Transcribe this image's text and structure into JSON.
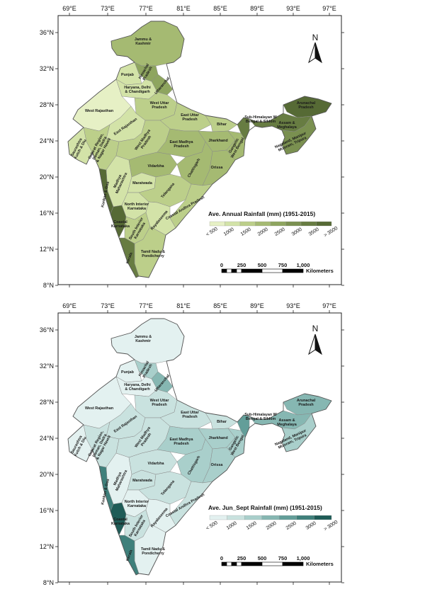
{
  "longitude_labels": [
    "69°E",
    "73°E",
    "77°E",
    "81°E",
    "85°E",
    "89°E",
    "93°E",
    "97°E"
  ],
  "latitude_labels": [
    "36°N",
    "32°N",
    "28°N",
    "24°N",
    "20°N",
    "16°N",
    "12°N",
    "8°N"
  ],
  "north_label": "N",
  "regions": [
    "Jammu & Kashmir",
    "Himachal Pradesh",
    "Punjab",
    "Uttaranchal",
    "Haryana, Delhi & Chandigarh",
    "West Rajasthan",
    "West Uttar Pradesh",
    "East Rajasthan",
    "East Uttar Pradesh",
    "Bihar",
    "Sub-Himalayan W Bengal & Sikkim",
    "Arunachal Pradesh",
    "Assam & Meghalaya",
    "Nagaland, Manipur, Mizoram, Tripura",
    "Gujarat Region, Daman, Dadra & Nagar Haveli",
    "Saurashtra, Kutch & Diu",
    "West Madhya Pradesh",
    "East Madhya Pradesh",
    "Jharkhand",
    "Gangetic West Bengal",
    "Madhya Maharashtra",
    "Vidarbha",
    "Chattisgarh",
    "Orissa",
    "Konkan & Goa",
    "Maratwada",
    "North Interior Karnataka",
    "Telangana",
    "Coastal Andhra Pradesh",
    "Coastal Karnataka",
    "South Interior Karnataka",
    "Rayalaseema",
    "Tamil Nadu & Pondicherry",
    "Kerala"
  ],
  "maps": [
    {
      "legend_title": "Ave. Annual Rainfall (mm) (1951-2015)",
      "legend_labels": [
        "< 500",
        "1000",
        "1500",
        "2000",
        "2500",
        "3000",
        "3500",
        "> 3500"
      ],
      "legend_colors": [
        "#e6f0c5",
        "#d3e3a8",
        "#bccf8a",
        "#a5ba72",
        "#8ea55f",
        "#7a9050",
        "#677c42",
        "#566a35"
      ],
      "region_levels": {
        "Jammu & Kashmir": 3,
        "Himachal Pradesh": 4,
        "Punjab": 1,
        "Uttaranchal": 4,
        "Haryana, Delhi & Chandigarh": 1,
        "West Rajasthan": 0,
        "West Uttar Pradesh": 2,
        "East Rajasthan": 1,
        "East Uttar Pradesh": 2,
        "Bihar": 2,
        "Sub-Himalayan W Bengal & Sikkim": 6,
        "Arunachal Pradesh": 7,
        "Assam & Meghalaya": 6,
        "Nagaland, Manipur, Mizoram, Tripura": 5,
        "Gujarat Region, Daman, Dadra & Nagar Haveli": 2,
        "Saurashtra, Kutch & Diu": 1,
        "West Madhya Pradesh": 2,
        "East Madhya Pradesh": 3,
        "Jharkhand": 3,
        "Gangetic West Bengal": 3,
        "Madhya Maharashtra": 1,
        "Vidarbha": 3,
        "Chattisgarh": 3,
        "Orissa": 3,
        "Konkan & Goa": 7,
        "Maratwada": 1,
        "North Interior Karnataka": 1,
        "Telangana": 2,
        "Coastal Andhra Pradesh": 2,
        "Coastal Karnataka": 7,
        "South Interior Karnataka": 2,
        "Rayalaseema": 1,
        "Tamil Nadu & Pondicherry": 2,
        "Kerala": 6
      }
    },
    {
      "legend_title": "Ave. Jun_Sept Rainfall (mm) (1951-2015)",
      "legend_labels": [
        "< 500",
        "1000",
        "1500",
        "2000",
        "2500",
        "3000",
        "> 3000"
      ],
      "legend_colors": [
        "#e3f1f0",
        "#c9e2df",
        "#a9cfcb",
        "#86b7b2",
        "#639e99",
        "#3f807b",
        "#1f5c57"
      ],
      "region_levels": {
        "Jammu & Kashmir": 0,
        "Himachal Pradesh": 2,
        "Punjab": 0,
        "Uttaranchal": 3,
        "Haryana, Delhi & Chandigarh": 0,
        "West Rajasthan": 0,
        "West Uttar Pradesh": 1,
        "East Rajasthan": 1,
        "East Uttar Pradesh": 1,
        "Bihar": 1,
        "Sub-Himalayan W Bengal & Sikkim": 4,
        "Arunachal Pradesh": 3,
        "Assam & Meghalaya": 3,
        "Nagaland, Manipur, Mizoram, Tripura": 2,
        "Gujarat Region, Daman, Dadra & Nagar Haveli": 1,
        "Saurashtra, Kutch & Diu": 0,
        "West Madhya Pradesh": 1,
        "East Madhya Pradesh": 2,
        "Jharkhand": 2,
        "Gangetic West Bengal": 2,
        "Madhya Maharashtra": 0,
        "Vidarbha": 1,
        "Chattisgarh": 2,
        "Orissa": 2,
        "Konkan & Goa": 5,
        "Maratwada": 1,
        "North Interior Karnataka": 0,
        "Telangana": 1,
        "Coastal Andhra Pradesh": 1,
        "Coastal Karnataka": 6,
        "South Interior Karnataka": 1,
        "Rayalaseema": 0,
        "Tamil Nadu & Pondicherry": 0,
        "Kerala": 5
      }
    }
  ],
  "scale_bar": {
    "labels": [
      "0",
      "250",
      "500",
      "750",
      "1,000"
    ],
    "unit": "Kilometers"
  }
}
